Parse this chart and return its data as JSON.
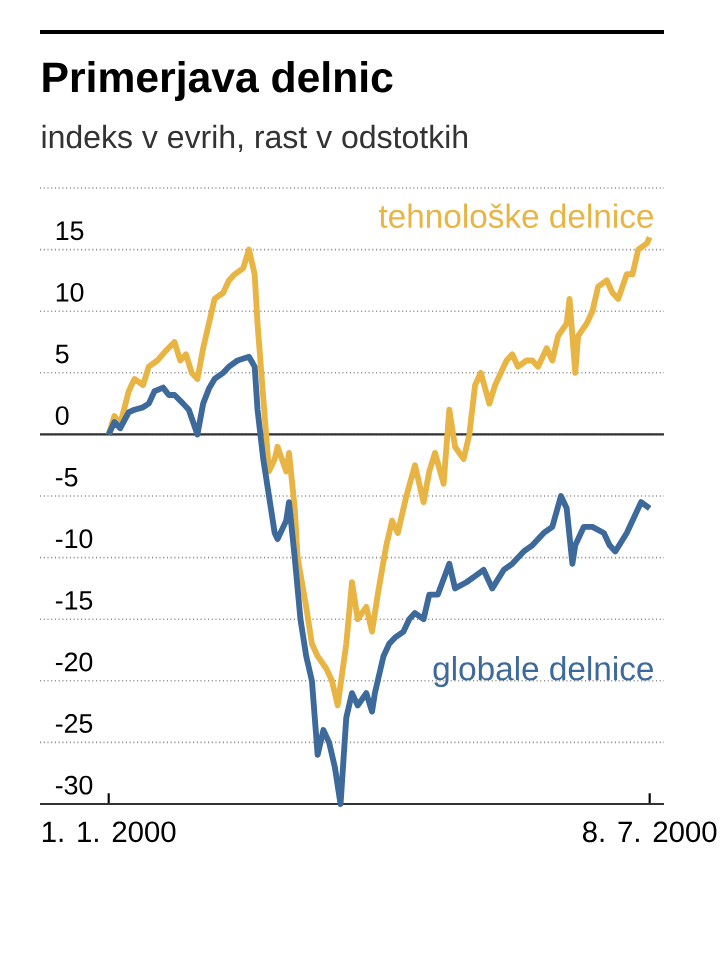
{
  "chart_data": {
    "type": "line",
    "title": "Primerjava delnic",
    "subtitle": "indeks v evrih, rast v odstotkih",
    "xlim": [
      "1999-12-08",
      "2000-07-13"
    ],
    "xticks": [
      {
        "value": "2000-01-01",
        "label": "1. 1. 2000"
      },
      {
        "value": "2000-07-08",
        "label": "8. 7. 2000"
      }
    ],
    "ylim": [
      -30,
      20
    ],
    "yticks": [
      -30,
      -25,
      -20,
      -15,
      -10,
      -5,
      0,
      5,
      10,
      15,
      {
        "value": 20,
        "label": null
      }
    ],
    "grid": "y",
    "line_style": "solid",
    "marker": "none",
    "ref_lines": [
      {
        "axis": "y",
        "value": 0,
        "color": "#333333"
      }
    ],
    "series": [
      {
        "name": "tehnološke delnice",
        "color": "#e8b545",
        "x": [
          "2000-01-01",
          "2000-01-03",
          "2000-01-05",
          "2000-01-08",
          "2000-01-10",
          "2000-01-13",
          "2000-01-15",
          "2000-01-18",
          "2000-01-21",
          "2000-01-24",
          "2000-01-26",
          "2000-01-28",
          "2000-01-30",
          "2000-02-01",
          "2000-02-03",
          "2000-02-05",
          "2000-02-07",
          "2000-02-10",
          "2000-02-12",
          "2000-02-14",
          "2000-02-17",
          "2000-02-19",
          "2000-02-21",
          "2000-02-22",
          "2000-02-24",
          "2000-02-26",
          "2000-02-28",
          "2000-02-29",
          "2000-03-03",
          "2000-03-04",
          "2000-03-06",
          "2000-03-07",
          "2000-03-10",
          "2000-03-12",
          "2000-03-14",
          "2000-03-17",
          "2000-03-19",
          "2000-03-21",
          "2000-03-24",
          "2000-03-26",
          "2000-03-28",
          "2000-03-31",
          "2000-04-02",
          "2000-04-04",
          "2000-04-07",
          "2000-04-09",
          "2000-04-11",
          "2000-04-14",
          "2000-04-17",
          "2000-04-20",
          "2000-04-22",
          "2000-04-24",
          "2000-04-27",
          "2000-04-29",
          "2000-05-01",
          "2000-05-04",
          "2000-05-06",
          "2000-05-08",
          "2000-05-10",
          "2000-05-13",
          "2000-05-15",
          "2000-05-19",
          "2000-05-21",
          "2000-05-23",
          "2000-05-26",
          "2000-05-28",
          "2000-05-30",
          "2000-06-02",
          "2000-06-04",
          "2000-06-06",
          "2000-06-09",
          "2000-06-10",
          "2000-06-12",
          "2000-06-13",
          "2000-06-16",
          "2000-06-18",
          "2000-06-20",
          "2000-06-23",
          "2000-06-25",
          "2000-06-27",
          "2000-06-30",
          "2000-07-02",
          "2000-07-04",
          "2000-07-07",
          "2000-07-08"
        ],
        "values": [
          0,
          1.5,
          0.8,
          3.5,
          4.5,
          4,
          5.5,
          6,
          6.8,
          7.5,
          6,
          6.5,
          5,
          4.5,
          7,
          9,
          11,
          11.5,
          12.5,
          13,
          13.5,
          15,
          13,
          9,
          3,
          -3,
          -2,
          -1,
          -3,
          -1.5,
          -6,
          -10,
          -14,
          -17,
          -18,
          -19,
          -20,
          -22,
          -17,
          -12,
          -15,
          -14,
          -16,
          -13,
          -9,
          -7,
          -8,
          -5,
          -2.5,
          -5.5,
          -3,
          -1.5,
          -4,
          2,
          -1,
          -2,
          0,
          4,
          5,
          2.5,
          4,
          6,
          6.5,
          5.5,
          6,
          6,
          5.5,
          7,
          6,
          8,
          9,
          11,
          5,
          8,
          9,
          10,
          12,
          12.5,
          11.5,
          11,
          13,
          13,
          15,
          15.5,
          16
        ]
      },
      {
        "name": "globale delnice",
        "color": "#3d6a9b",
        "x": [
          "2000-01-01",
          "2000-01-03",
          "2000-01-05",
          "2000-01-08",
          "2000-01-10",
          "2000-01-13",
          "2000-01-15",
          "2000-01-17",
          "2000-01-20",
          "2000-01-22",
          "2000-01-24",
          "2000-01-27",
          "2000-01-29",
          "2000-02-01",
          "2000-02-03",
          "2000-02-05",
          "2000-02-07",
          "2000-02-10",
          "2000-02-12",
          "2000-02-15",
          "2000-02-19",
          "2000-02-21",
          "2000-02-22",
          "2000-02-24",
          "2000-02-26",
          "2000-02-28",
          "2000-02-29",
          "2000-03-03",
          "2000-03-04",
          "2000-03-06",
          "2000-03-08",
          "2000-03-10",
          "2000-03-12",
          "2000-03-14",
          "2000-03-16",
          "2000-03-18",
          "2000-03-20",
          "2000-03-22",
          "2000-03-24",
          "2000-03-26",
          "2000-03-28",
          "2000-03-31",
          "2000-04-02",
          "2000-04-03",
          "2000-04-06",
          "2000-04-08",
          "2000-04-10",
          "2000-04-13",
          "2000-04-15",
          "2000-04-17",
          "2000-04-20",
          "2000-04-22",
          "2000-04-25",
          "2000-04-29",
          "2000-05-01",
          "2000-05-05",
          "2000-05-08",
          "2000-05-11",
          "2000-05-14",
          "2000-05-18",
          "2000-05-21",
          "2000-05-25",
          "2000-05-28",
          "2000-06-01",
          "2000-06-04",
          "2000-06-07",
          "2000-06-09",
          "2000-06-11",
          "2000-06-12",
          "2000-06-15",
          "2000-06-18",
          "2000-06-22",
          "2000-06-24",
          "2000-06-26",
          "2000-06-30",
          "2000-07-03",
          "2000-07-05",
          "2000-07-08"
        ],
        "values": [
          0,
          1,
          0.5,
          1.8,
          2,
          2.2,
          2.5,
          3.5,
          3.8,
          3.2,
          3.2,
          2.5,
          2,
          0,
          2.5,
          3.7,
          4.5,
          5,
          5.5,
          6,
          6.3,
          5.5,
          2,
          -2,
          -5,
          -8,
          -8.5,
          -7,
          -5.5,
          -10,
          -15,
          -18,
          -20,
          -26,
          -24,
          -25,
          -27,
          -30,
          -23,
          -21,
          -22,
          -21,
          -22.5,
          -21,
          -18,
          -17,
          -16.5,
          -16,
          -15,
          -14.5,
          -15,
          -13,
          -13,
          -10.5,
          -12.5,
          -12,
          -11.5,
          -11,
          -12.5,
          -11,
          -10.5,
          -9.5,
          -9,
          -8,
          -7.5,
          -5,
          -6,
          -10.5,
          -9,
          -7.5,
          -7.5,
          -8,
          -9,
          -9.5,
          -8,
          -6.5,
          -5.5,
          -6
        ]
      }
    ]
  }
}
